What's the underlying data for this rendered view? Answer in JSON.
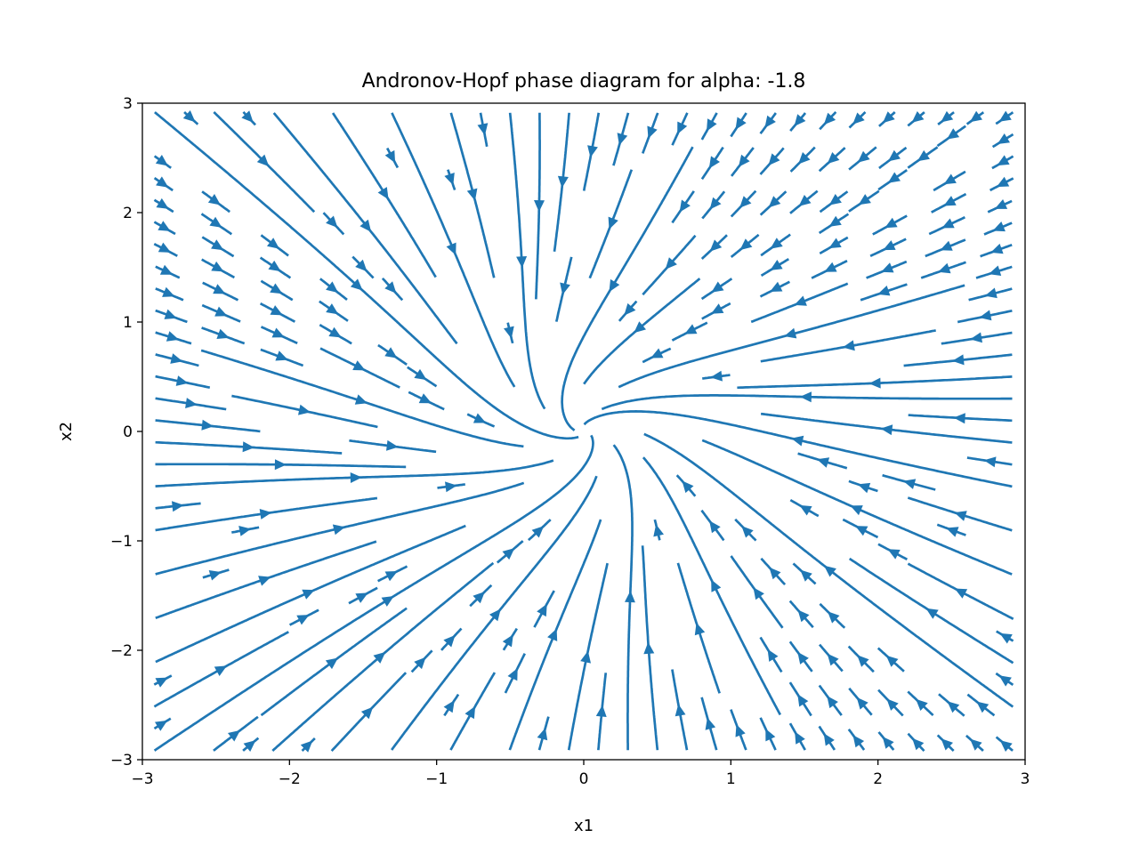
{
  "chart_data": {
    "type": "streamplot",
    "title": "Andronov-Hopf phase diagram for alpha: -1.8",
    "xlabel": "x1",
    "ylabel": "x2",
    "xlim": [
      -3,
      3
    ],
    "ylim": [
      -3,
      3
    ],
    "xticks": [
      -3,
      -2,
      -1,
      0,
      1,
      2,
      3
    ],
    "yticks": [
      -3,
      -2,
      -1,
      0,
      1,
      2,
      3
    ],
    "xtick_labels": [
      "−3",
      "−2",
      "−1",
      "0",
      "1",
      "2",
      "3"
    ],
    "ytick_labels": [
      "−3",
      "−2",
      "−1",
      "0",
      "1",
      "2",
      "3"
    ],
    "vector_field": {
      "system": "Andronov-Hopf normal form",
      "alpha": -1.8,
      "equilibrium": [
        0,
        0
      ],
      "behavior": "stable focus"
    },
    "grid": false,
    "legend": "none",
    "line_color": "#1f77b4"
  }
}
